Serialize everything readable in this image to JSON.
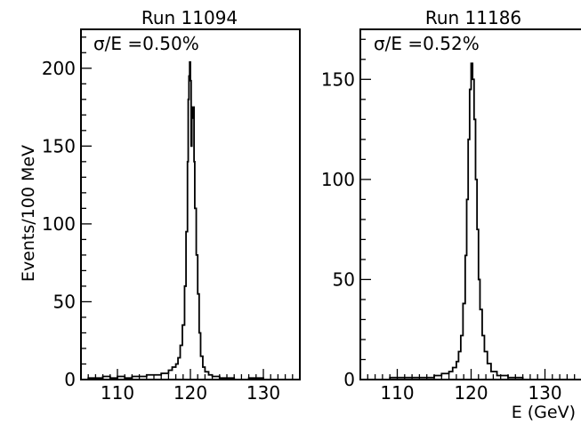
{
  "chart_data": [
    {
      "type": "line",
      "title": "Run 11094",
      "annotation": "σ/E =0.50%",
      "xlabel": "",
      "ylabel": "Events/100 MeV",
      "xlim": [
        105,
        135
      ],
      "ylim": [
        0,
        225
      ],
      "x_ticks": [
        110,
        120,
        130
      ],
      "y_ticks": [
        0,
        50,
        100,
        150,
        200
      ],
      "x_minor_step": 1,
      "y_minor_step": 10,
      "grid": false,
      "legend": "none",
      "series": [
        {
          "x": [
            105,
            106,
            107,
            108,
            109,
            110,
            111,
            112,
            113,
            114,
            115,
            116,
            116.5,
            117,
            117.5,
            118,
            118.3,
            118.6,
            118.9,
            119.2,
            119.4,
            119.6,
            119.7,
            119.8,
            119.9,
            120.0,
            120.1,
            120.2,
            120.3,
            120.4,
            120.5,
            120.6,
            120.8,
            121.0,
            121.2,
            121.4,
            121.7,
            122.0,
            122.5,
            123,
            124,
            125,
            126,
            128,
            130,
            132,
            135
          ],
          "y": [
            0,
            1,
            1,
            2,
            1,
            2,
            1,
            2,
            2,
            3,
            3,
            4,
            4,
            6,
            8,
            10,
            14,
            22,
            35,
            60,
            95,
            140,
            180,
            195,
            204,
            192,
            150,
            175,
            168,
            175,
            140,
            110,
            80,
            55,
            30,
            15,
            8,
            5,
            3,
            2,
            1,
            1,
            0,
            1,
            0,
            0,
            0
          ]
        }
      ]
    },
    {
      "type": "line",
      "title": "Run 11186",
      "annotation": "σ/E =0.52%",
      "xlabel": "E (GeV)",
      "ylabel": "",
      "xlim": [
        105,
        135
      ],
      "ylim": [
        0,
        175
      ],
      "x_ticks": [
        110,
        120,
        130
      ],
      "y_ticks": [
        0,
        50,
        100,
        150
      ],
      "x_minor_step": 1,
      "y_minor_step": 10,
      "grid": false,
      "legend": "none",
      "series": [
        {
          "x": [
            105,
            107,
            109,
            111,
            113,
            115,
            116,
            117,
            117.5,
            118,
            118.3,
            118.6,
            118.9,
            119.2,
            119.4,
            119.6,
            119.8,
            120.0,
            120.2,
            120.4,
            120.6,
            120.8,
            121.0,
            121.2,
            121.5,
            121.8,
            122.2,
            122.7,
            123.5,
            125,
            127,
            130,
            135
          ],
          "y": [
            0,
            0,
            1,
            1,
            1,
            2,
            3,
            4,
            6,
            9,
            14,
            22,
            38,
            62,
            90,
            120,
            145,
            158,
            150,
            130,
            100,
            75,
            50,
            35,
            22,
            14,
            8,
            4,
            2,
            1,
            0,
            0,
            0
          ]
        }
      ]
    }
  ]
}
